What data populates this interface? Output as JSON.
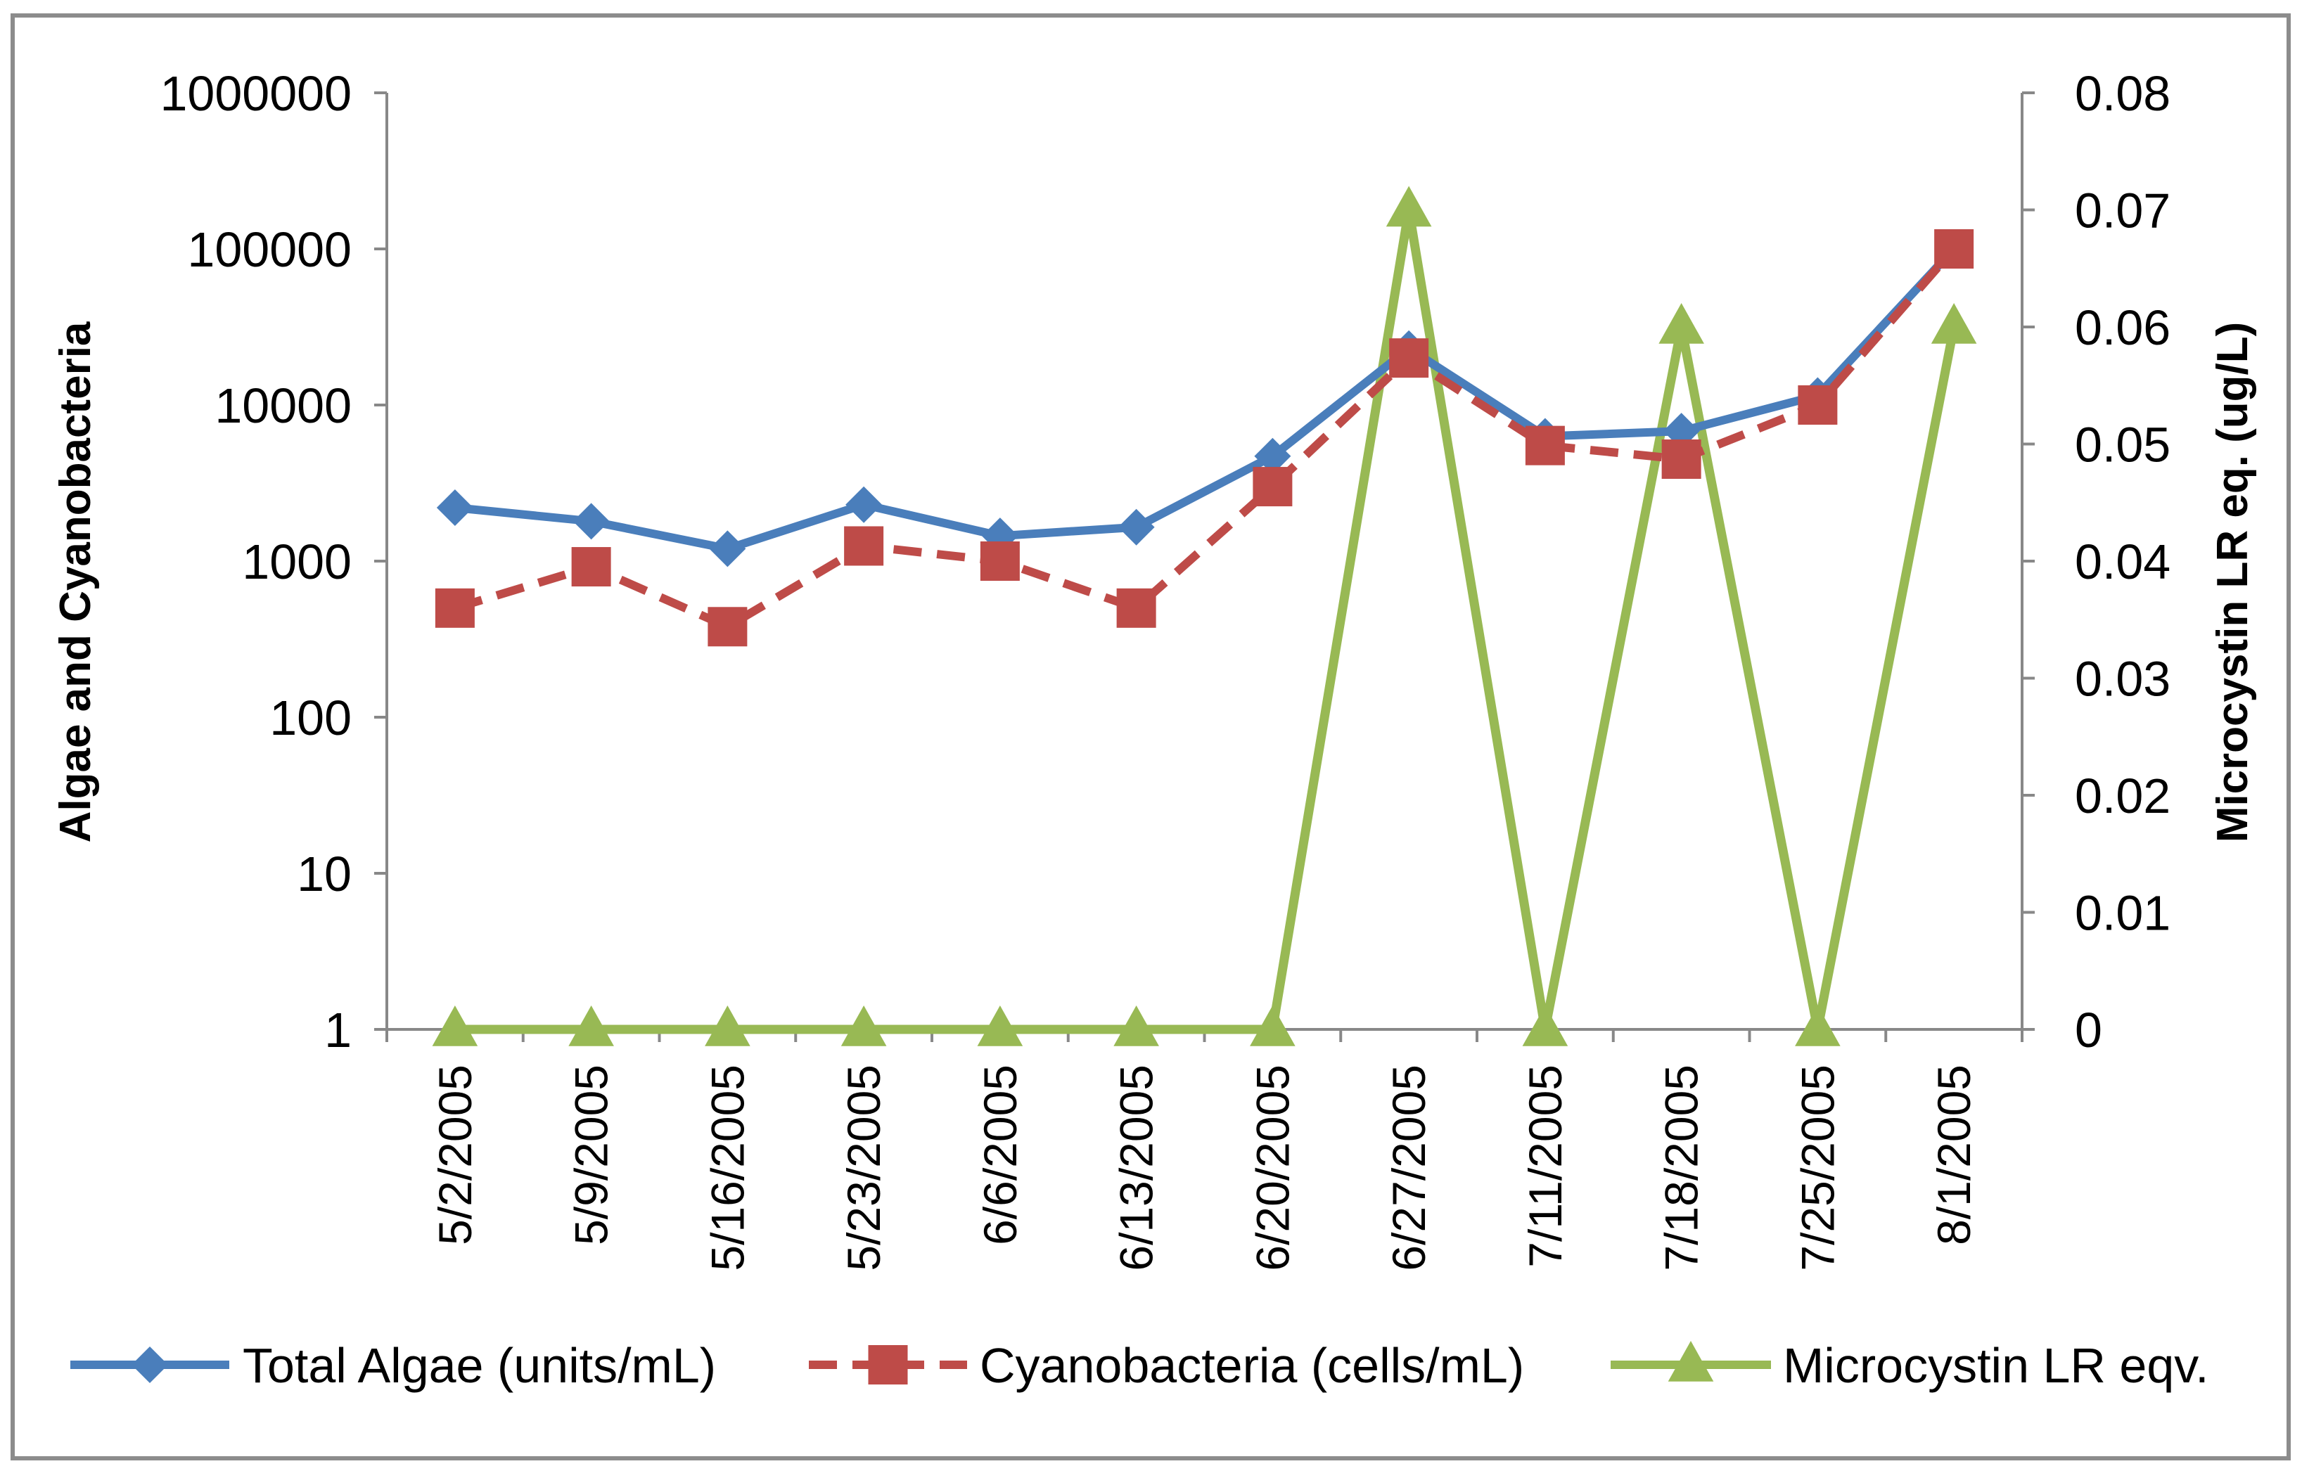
{
  "chart_data": {
    "type": "line",
    "title": "",
    "categories": [
      "5/2/2005",
      "5/9/2005",
      "5/16/2005",
      "5/23/2005",
      "6/6/2005",
      "6/13/2005",
      "6/20/2005",
      "6/27/2005",
      "7/11/2005",
      "7/18/2005",
      "7/25/2005",
      "8/1/2005"
    ],
    "ylabel": "Algae and Cyanobacteria",
    "y2label": "Microcystin LR eq. (ug/L)",
    "xlabel": "",
    "y_scale": "log",
    "ylim": [
      1,
      1000000
    ],
    "y_ticks": [
      "1",
      "10",
      "100",
      "1000",
      "10000",
      "100000",
      "1000000"
    ],
    "y2lim": [
      0,
      0.08
    ],
    "y2_ticks": [
      "0",
      "0.01",
      "0.02",
      "0.03",
      "0.04",
      "0.05",
      "0.06",
      "0.07",
      "0.08"
    ],
    "legend_position": "bottom",
    "grid": false,
    "series": [
      {
        "name": "Total Algae (units/mL)",
        "axis": "left",
        "color": "#4a7ebb",
        "marker": "diamond",
        "dash": "solid",
        "values": [
          2200,
          1800,
          1200,
          2300,
          1450,
          1650,
          4700,
          23000,
          6300,
          6800,
          11500,
          100000
        ]
      },
      {
        "name": "Cyanobacteria (cells/mL)",
        "axis": "left",
        "color": "#be4b48",
        "marker": "square",
        "dash": "dashed",
        "values": [
          500,
          920,
          380,
          1250,
          1000,
          500,
          3000,
          20000,
          5500,
          4500,
          10000,
          100000
        ]
      },
      {
        "name": "Microcystin LR eqv.",
        "axis": "right",
        "color": "#98b954",
        "marker": "triangle",
        "dash": "solid",
        "values": [
          0,
          0,
          0,
          0,
          0,
          0,
          0,
          0.07,
          0,
          0.06,
          0,
          0.06
        ]
      }
    ]
  }
}
